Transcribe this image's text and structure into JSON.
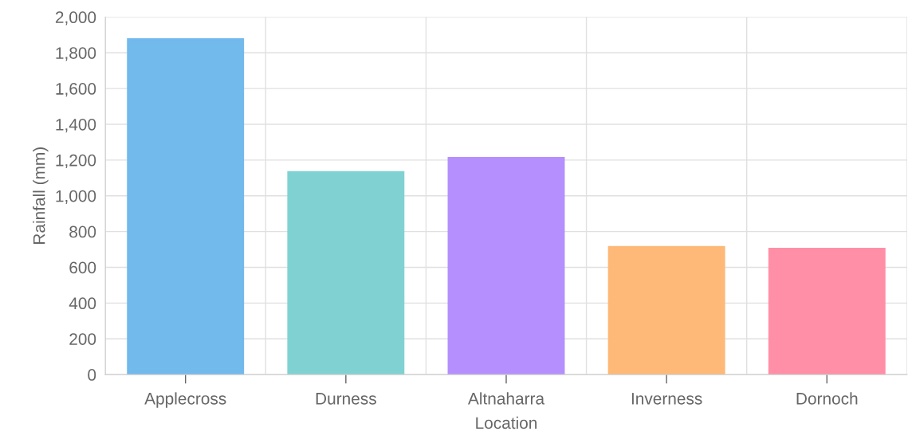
{
  "chart_data": {
    "type": "bar",
    "xlabel": "Location",
    "ylabel": "Rainfall (mm)",
    "categories": [
      "Applecross",
      "Durness",
      "Altnaharra",
      "Inverness",
      "Dornoch"
    ],
    "values": [
      1876,
      1133,
      1213,
      715,
      704
    ],
    "colors": [
      "#72b9ec",
      "#80d2d2",
      "#b58ffd",
      "#feb877",
      "#ff8fa7"
    ],
    "ylim": [
      0,
      2000
    ],
    "yticks": [
      {
        "value": 0,
        "label": "0"
      },
      {
        "value": 200,
        "label": "200"
      },
      {
        "value": 400,
        "label": "400"
      },
      {
        "value": 600,
        "label": "600"
      },
      {
        "value": 800,
        "label": "800"
      },
      {
        "value": 1000,
        "label": "1,000"
      },
      {
        "value": 1200,
        "label": "1,200"
      },
      {
        "value": 1400,
        "label": "1,400"
      },
      {
        "value": 1600,
        "label": "1,600"
      },
      {
        "value": 1800,
        "label": "1,800"
      },
      {
        "value": 2000,
        "label": "2,000"
      }
    ],
    "grid": true
  }
}
